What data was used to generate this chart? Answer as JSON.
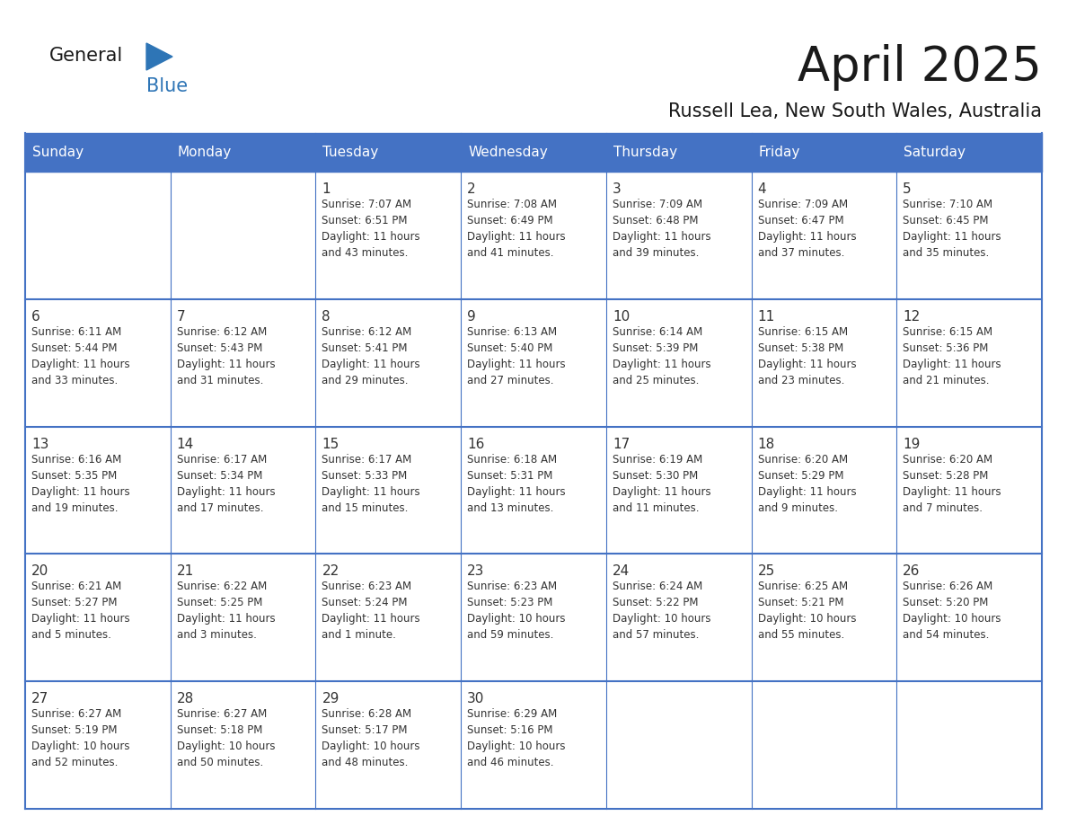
{
  "title": "April 2025",
  "subtitle": "Russell Lea, New South Wales, Australia",
  "days_of_week": [
    "Sunday",
    "Monday",
    "Tuesday",
    "Wednesday",
    "Thursday",
    "Friday",
    "Saturday"
  ],
  "header_color": "#4472C4",
  "header_text_color": "#FFFFFF",
  "cell_bg_color": "#FFFFFF",
  "border_color": "#4472C4",
  "title_color": "#1a1a1a",
  "subtitle_color": "#1a1a1a",
  "text_color": "#333333",
  "week_data": [
    [
      {
        "day": "",
        "info": ""
      },
      {
        "day": "",
        "info": ""
      },
      {
        "day": "1",
        "info": "Sunrise: 7:07 AM\nSunset: 6:51 PM\nDaylight: 11 hours\nand 43 minutes."
      },
      {
        "day": "2",
        "info": "Sunrise: 7:08 AM\nSunset: 6:49 PM\nDaylight: 11 hours\nand 41 minutes."
      },
      {
        "day": "3",
        "info": "Sunrise: 7:09 AM\nSunset: 6:48 PM\nDaylight: 11 hours\nand 39 minutes."
      },
      {
        "day": "4",
        "info": "Sunrise: 7:09 AM\nSunset: 6:47 PM\nDaylight: 11 hours\nand 37 minutes."
      },
      {
        "day": "5",
        "info": "Sunrise: 7:10 AM\nSunset: 6:45 PM\nDaylight: 11 hours\nand 35 minutes."
      }
    ],
    [
      {
        "day": "6",
        "info": "Sunrise: 6:11 AM\nSunset: 5:44 PM\nDaylight: 11 hours\nand 33 minutes."
      },
      {
        "day": "7",
        "info": "Sunrise: 6:12 AM\nSunset: 5:43 PM\nDaylight: 11 hours\nand 31 minutes."
      },
      {
        "day": "8",
        "info": "Sunrise: 6:12 AM\nSunset: 5:41 PM\nDaylight: 11 hours\nand 29 minutes."
      },
      {
        "day": "9",
        "info": "Sunrise: 6:13 AM\nSunset: 5:40 PM\nDaylight: 11 hours\nand 27 minutes."
      },
      {
        "day": "10",
        "info": "Sunrise: 6:14 AM\nSunset: 5:39 PM\nDaylight: 11 hours\nand 25 minutes."
      },
      {
        "day": "11",
        "info": "Sunrise: 6:15 AM\nSunset: 5:38 PM\nDaylight: 11 hours\nand 23 minutes."
      },
      {
        "day": "12",
        "info": "Sunrise: 6:15 AM\nSunset: 5:36 PM\nDaylight: 11 hours\nand 21 minutes."
      }
    ],
    [
      {
        "day": "13",
        "info": "Sunrise: 6:16 AM\nSunset: 5:35 PM\nDaylight: 11 hours\nand 19 minutes."
      },
      {
        "day": "14",
        "info": "Sunrise: 6:17 AM\nSunset: 5:34 PM\nDaylight: 11 hours\nand 17 minutes."
      },
      {
        "day": "15",
        "info": "Sunrise: 6:17 AM\nSunset: 5:33 PM\nDaylight: 11 hours\nand 15 minutes."
      },
      {
        "day": "16",
        "info": "Sunrise: 6:18 AM\nSunset: 5:31 PM\nDaylight: 11 hours\nand 13 minutes."
      },
      {
        "day": "17",
        "info": "Sunrise: 6:19 AM\nSunset: 5:30 PM\nDaylight: 11 hours\nand 11 minutes."
      },
      {
        "day": "18",
        "info": "Sunrise: 6:20 AM\nSunset: 5:29 PM\nDaylight: 11 hours\nand 9 minutes."
      },
      {
        "day": "19",
        "info": "Sunrise: 6:20 AM\nSunset: 5:28 PM\nDaylight: 11 hours\nand 7 minutes."
      }
    ],
    [
      {
        "day": "20",
        "info": "Sunrise: 6:21 AM\nSunset: 5:27 PM\nDaylight: 11 hours\nand 5 minutes."
      },
      {
        "day": "21",
        "info": "Sunrise: 6:22 AM\nSunset: 5:25 PM\nDaylight: 11 hours\nand 3 minutes."
      },
      {
        "day": "22",
        "info": "Sunrise: 6:23 AM\nSunset: 5:24 PM\nDaylight: 11 hours\nand 1 minute."
      },
      {
        "day": "23",
        "info": "Sunrise: 6:23 AM\nSunset: 5:23 PM\nDaylight: 10 hours\nand 59 minutes."
      },
      {
        "day": "24",
        "info": "Sunrise: 6:24 AM\nSunset: 5:22 PM\nDaylight: 10 hours\nand 57 minutes."
      },
      {
        "day": "25",
        "info": "Sunrise: 6:25 AM\nSunset: 5:21 PM\nDaylight: 10 hours\nand 55 minutes."
      },
      {
        "day": "26",
        "info": "Sunrise: 6:26 AM\nSunset: 5:20 PM\nDaylight: 10 hours\nand 54 minutes."
      }
    ],
    [
      {
        "day": "27",
        "info": "Sunrise: 6:27 AM\nSunset: 5:19 PM\nDaylight: 10 hours\nand 52 minutes."
      },
      {
        "day": "28",
        "info": "Sunrise: 6:27 AM\nSunset: 5:18 PM\nDaylight: 10 hours\nand 50 minutes."
      },
      {
        "day": "29",
        "info": "Sunrise: 6:28 AM\nSunset: 5:17 PM\nDaylight: 10 hours\nand 48 minutes."
      },
      {
        "day": "30",
        "info": "Sunrise: 6:29 AM\nSunset: 5:16 PM\nDaylight: 10 hours\nand 46 minutes."
      },
      {
        "day": "",
        "info": ""
      },
      {
        "day": "",
        "info": ""
      },
      {
        "day": "",
        "info": ""
      }
    ]
  ],
  "logo_text_general": "General",
  "logo_text_blue": "Blue",
  "logo_color_general": "#1a1a1a",
  "logo_color_blue": "#2E75B6",
  "logo_triangle_color": "#2E75B6",
  "fig_width": 11.88,
  "fig_height": 9.18,
  "dpi": 100
}
